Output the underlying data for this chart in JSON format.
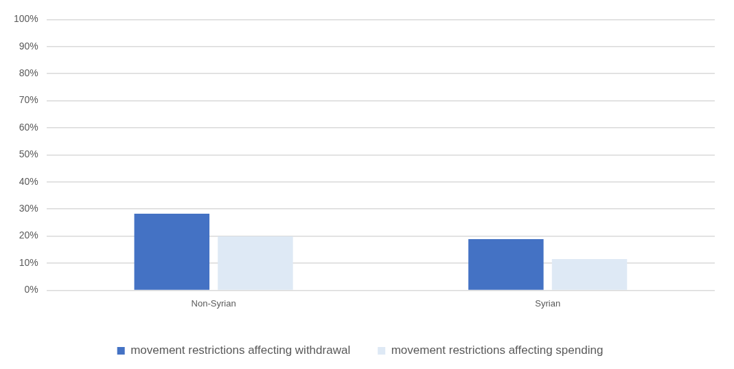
{
  "chart_data": {
    "type": "bar",
    "categories": [
      "Non-Syrian",
      "Syrian"
    ],
    "series": [
      {
        "name": "movement restrictions affecting withdrawal",
        "color": "#4472c4",
        "values": [
          28.3,
          18.9
        ]
      },
      {
        "name": "movement restrictions affecting spending",
        "color": "#dee9f5",
        "values": [
          19.9,
          11.5
        ]
      }
    ],
    "ylim": [
      0,
      100
    ],
    "yticks": [
      {
        "value": 0,
        "label": "0%"
      },
      {
        "value": 10,
        "label": "10%"
      },
      {
        "value": 20,
        "label": "20%"
      },
      {
        "value": 30,
        "label": "30%"
      },
      {
        "value": 40,
        "label": "40%"
      },
      {
        "value": 50,
        "label": "50%"
      },
      {
        "value": 60,
        "label": "60%"
      },
      {
        "value": 70,
        "label": "70%"
      },
      {
        "value": 80,
        "label": "80%"
      },
      {
        "value": 90,
        "label": "90%"
      },
      {
        "value": 100,
        "label": "100%"
      }
    ],
    "grid": "y",
    "legend": "bottom"
  }
}
